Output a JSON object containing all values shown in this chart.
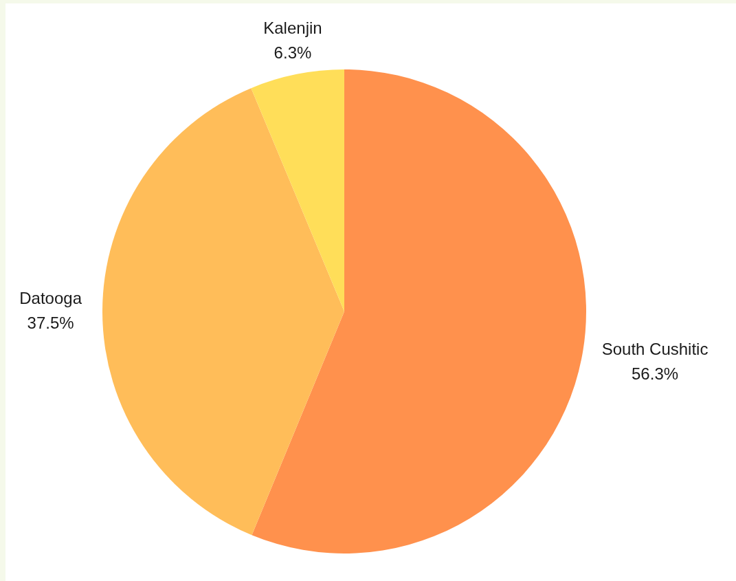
{
  "chart_data": {
    "type": "pie",
    "categories": [
      "South Cushitic",
      "Datooga",
      "Kalenjin"
    ],
    "values": [
      56.3,
      37.5,
      6.3
    ],
    "colors": [
      "#ff914d",
      "#ffbd59",
      "#ffde59"
    ],
    "value_labels": [
      "56.3%",
      "37.5%",
      "6.3%"
    ],
    "legend": false
  }
}
